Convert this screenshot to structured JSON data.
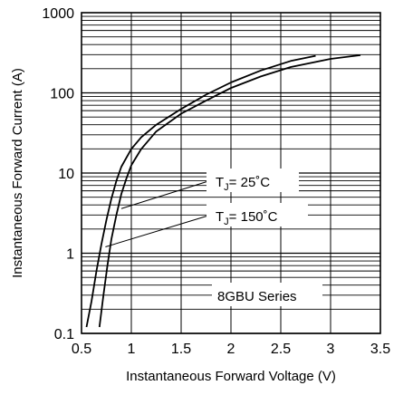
{
  "chart_data": {
    "type": "line",
    "title": "",
    "xlabel": "Instantaneous Forward Voltage (V)",
    "ylabel": "Instantaneous Forward Current (A)",
    "xlim": [
      0.5,
      3.5
    ],
    "ylim": [
      0.1,
      1000
    ],
    "y_scale": "log",
    "x_ticks": [
      0.5,
      1,
      1.5,
      2,
      2.5,
      3,
      3.5
    ],
    "x_tick_labels": [
      "0.5",
      "1",
      "1.5",
      "2",
      "2.5",
      "3",
      "3.5"
    ],
    "y_ticks": [
      0.1,
      1,
      10,
      100,
      1000
    ],
    "y_tick_labels": [
      "0.1",
      "1",
      "10",
      "100",
      "1000"
    ],
    "grid": true,
    "series": [
      {
        "name": "T_J = 25°C",
        "x": [
          0.55,
          0.6,
          0.65,
          0.7,
          0.75,
          0.8,
          0.85,
          0.9,
          1.0,
          1.1,
          1.25,
          1.5,
          1.75,
          2.0,
          2.3,
          2.6,
          2.85
        ],
        "y": [
          0.12,
          0.25,
          0.6,
          1.3,
          2.6,
          4.8,
          8,
          12,
          20,
          28,
          40,
          63,
          95,
          135,
          190,
          250,
          290
        ]
      },
      {
        "name": "T_J = 150°C",
        "x": [
          0.68,
          0.72,
          0.76,
          0.8,
          0.85,
          0.9,
          0.95,
          1.0,
          1.1,
          1.25,
          1.5,
          1.75,
          2.0,
          2.3,
          2.6,
          3.0,
          3.3
        ],
        "y": [
          0.12,
          0.3,
          0.7,
          1.5,
          3,
          5.5,
          8.5,
          12.5,
          20,
          33,
          55,
          80,
          115,
          160,
          210,
          265,
          295
        ]
      }
    ],
    "annotations": [
      {
        "base": "T",
        "sub": "J",
        "rest": "= 25˚C"
      },
      {
        "base": "T",
        "sub": "J",
        "rest": "= 150˚C"
      },
      {
        "text": "8GBU  Series"
      }
    ]
  }
}
